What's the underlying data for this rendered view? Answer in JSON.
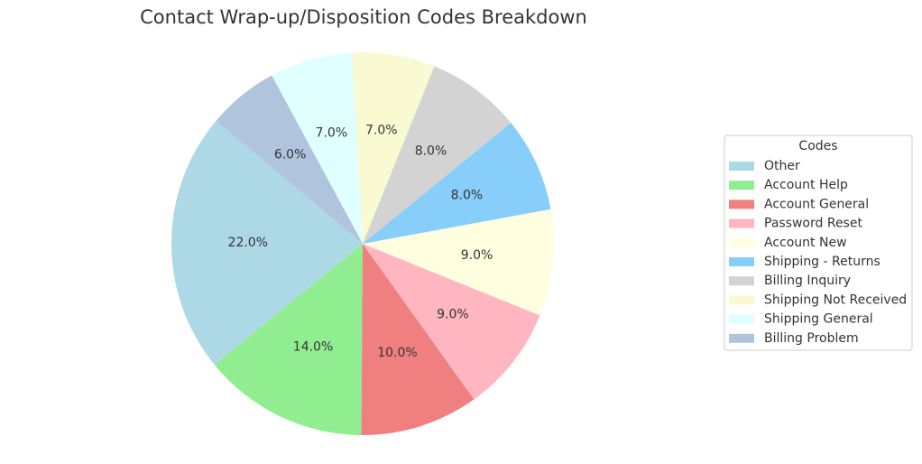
{
  "chart_data": {
    "type": "pie",
    "title": "Contact Wrap-up/Disposition Codes Breakdown",
    "categories": [
      "Other",
      "Account Help",
      "Account General",
      "Password Reset",
      "Account New",
      "Shipping - Returns",
      "Billing Inquiry",
      "Shipping Not Received",
      "Shipping General",
      "Billing Problem"
    ],
    "values": [
      22,
      14,
      10,
      9,
      9,
      8,
      8,
      7,
      7,
      6
    ],
    "value_labels": [
      "22.0%",
      "14.0%",
      "10.0%",
      "9.0%",
      "9.0%",
      "8.0%",
      "8.0%",
      "7.0%",
      "7.0%",
      "6.0%"
    ],
    "colors": [
      "#add8e6",
      "#90ee90",
      "#f08080",
      "#ffb6c1",
      "#ffffe0",
      "#87cefa",
      "#d3d3d3",
      "#fafad2",
      "#e0ffff",
      "#b0c4de"
    ],
    "legend_title": "Codes",
    "legend": "right"
  }
}
